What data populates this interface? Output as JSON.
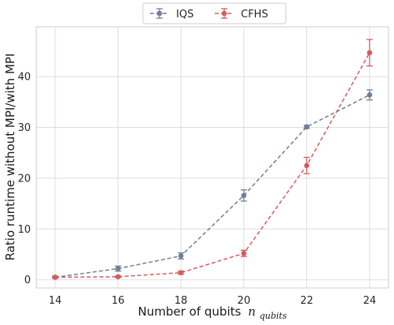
{
  "chart_data": {
    "type": "line",
    "x": [
      14,
      16,
      18,
      20,
      22,
      24
    ],
    "xlim": [
      13.4,
      24.6
    ],
    "ylim": [
      -1.6,
      49.8
    ],
    "xticks": [
      14,
      16,
      18,
      20,
      22,
      24
    ],
    "yticks": [
      0,
      10,
      20,
      30,
      40
    ],
    "xlabel": "Number of qubits",
    "xlabel_symbol": "n",
    "xlabel_subscript": "qubits",
    "ylabel": "Ratio runtime without MPI/with MPI",
    "grid": true,
    "legend_position": "top-center",
    "series": [
      {
        "name": "IQS",
        "color": "#6f7f96",
        "line_style": "dashed",
        "marker": "circle",
        "values": [
          0.5,
          2.2,
          4.7,
          16.6,
          30.1,
          36.4
        ],
        "errors": [
          0.2,
          0.5,
          0.6,
          1.1,
          0.3,
          1.0
        ]
      },
      {
        "name": "CFHS",
        "color": "#d45c5c",
        "line_style": "dashed",
        "marker": "circle",
        "values": [
          0.5,
          0.6,
          1.4,
          5.2,
          22.5,
          44.7
        ],
        "errors": [
          0.1,
          0.15,
          0.3,
          0.6,
          1.6,
          2.6
        ]
      }
    ]
  }
}
